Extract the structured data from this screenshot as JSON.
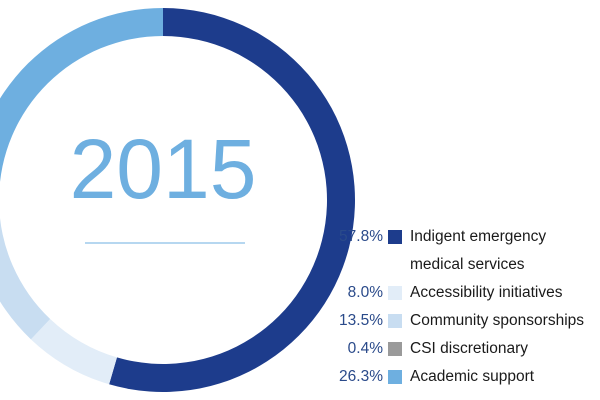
{
  "chart_data": {
    "type": "donut",
    "title": "2015",
    "categories": [
      "Indigent emergency medical services",
      "Accessibility initiatives",
      "Community sponsorships",
      "CSI discretionary",
      "Academic support"
    ],
    "values": [
      57.8,
      8.0,
      13.5,
      0.4,
      26.3
    ],
    "value_labels": [
      "57.8%",
      "8.0%",
      "13.5%",
      "0.4%",
      "26.3%"
    ],
    "colors": [
      "#1d3c8c",
      "#e2edf8",
      "#c8ddf1",
      "#9a9a9a",
      "#6eafe0"
    ]
  }
}
